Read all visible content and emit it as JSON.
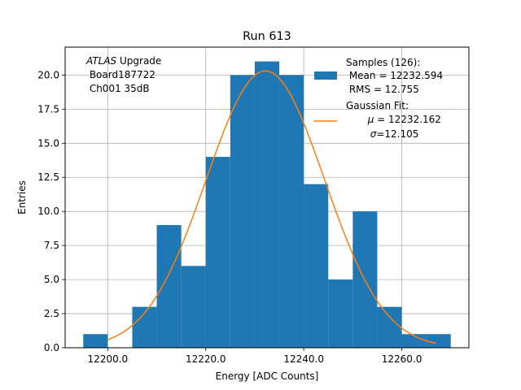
{
  "chart_data": {
    "type": "bar",
    "title": "Run 613",
    "xlabel": "Energy [ADC Counts]",
    "ylabel": "Entries",
    "xlim": [
      12191.3,
      12273.7
    ],
    "ylim": [
      0,
      22.05
    ],
    "grid": true,
    "legend_position": "top-right",
    "xticks": [
      12200,
      12220,
      12240,
      12260
    ],
    "xtick_labels": [
      "12200.0",
      "12220.0",
      "12240.0",
      "12260.0"
    ],
    "yticks": [
      0,
      2.5,
      5,
      7.5,
      10,
      12.5,
      15,
      17.5,
      20
    ],
    "ytick_labels": [
      "0.0",
      "2.5",
      "5.0",
      "7.5",
      "10.0",
      "12.5",
      "15.0",
      "17.5",
      "20.0"
    ],
    "bin_edges": [
      12195,
      12200,
      12205,
      12210,
      12215,
      12220,
      12225,
      12230,
      12235,
      12240,
      12245,
      12250,
      12255,
      12260,
      12265,
      12270
    ],
    "values": [
      1,
      0,
      3,
      9,
      6,
      14,
      20,
      21,
      20,
      12,
      5,
      10,
      3,
      1,
      1
    ],
    "fit": {
      "mu": 12232.162,
      "sigma": 12.105,
      "amplitude": 20.3,
      "x_range": [
        12200,
        12267
      ]
    },
    "annotation": {
      "italic": "ATLAS",
      "text": " Upgrade",
      "line2": " Board187722",
      "line3": " Ch001 35dB"
    },
    "legend": {
      "samples_line1": "Samples (126):",
      "samples_line2": " Mean = 12232.594",
      "samples_line3": " RMS = 12.755",
      "fit_line1": "Gaussian Fit:",
      "fit_line2_sym": "μ",
      "fit_line2_val": " = 12232.162",
      "fit_line3_sym": "σ",
      "fit_line3_val": "=12.105"
    },
    "colors": {
      "bars": "#1f77b4",
      "fit": "#ff7f0e",
      "grid": "#b0b0b0"
    }
  }
}
